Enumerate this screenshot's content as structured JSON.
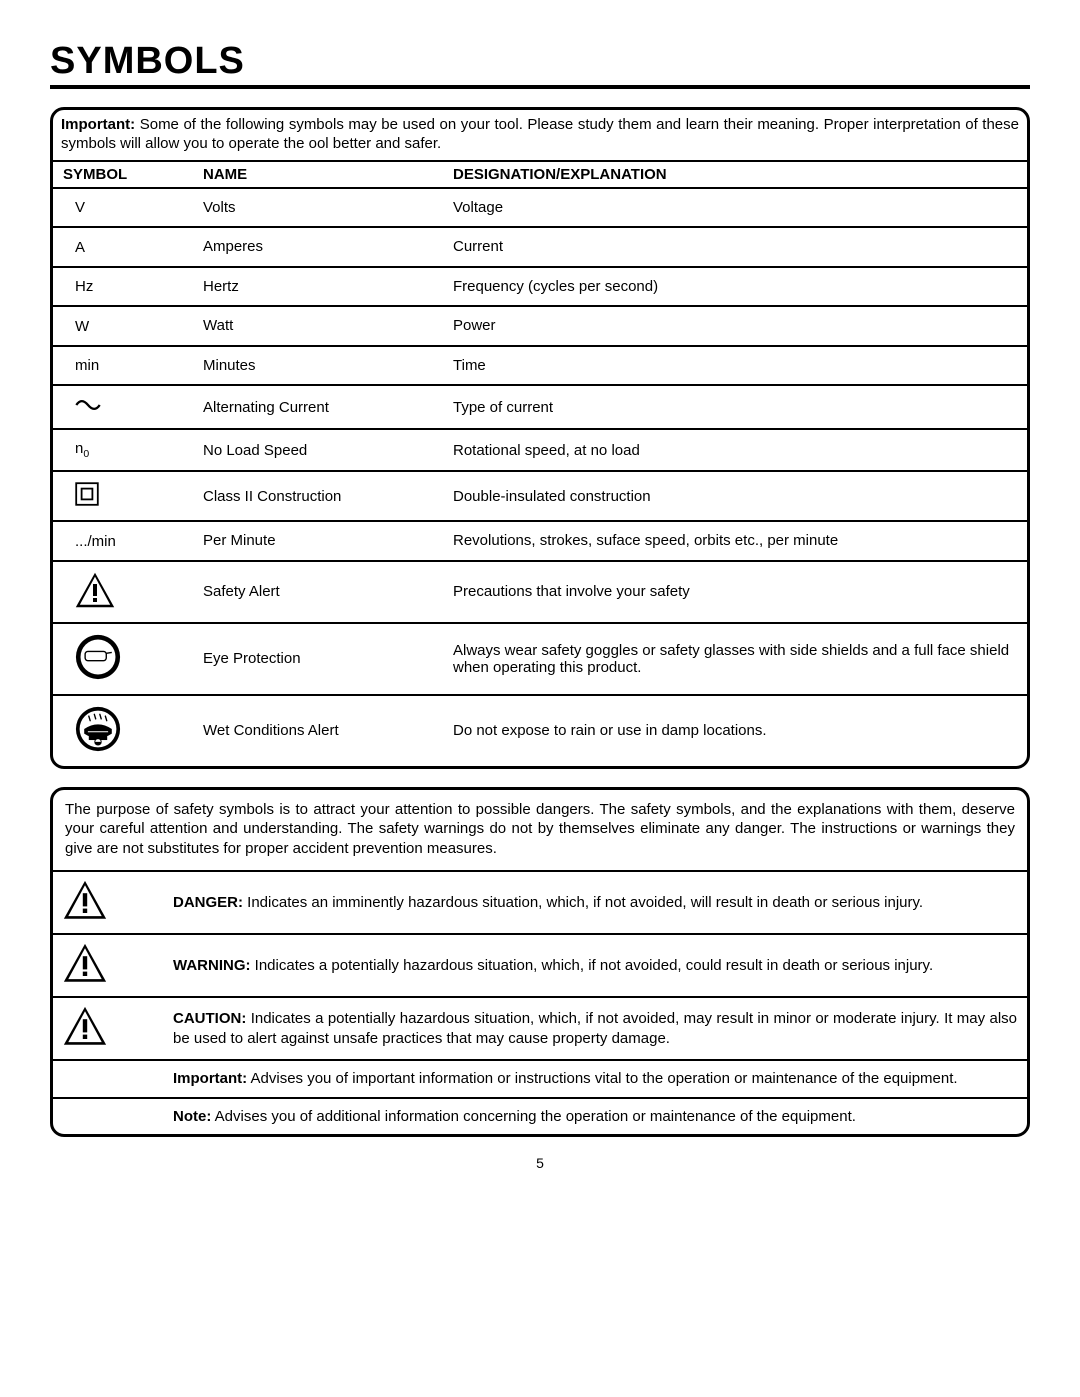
{
  "title": "SYMBOLS",
  "pageNumber": "5",
  "intro": {
    "lead": "Important:",
    "text": " Some of the following symbols may be used on your tool. Please study them and learn their meaning. Proper interpretation of these symbols will allow you to operate the ool better and safer."
  },
  "headers": {
    "symbol": "SYMBOL",
    "name": "NAME",
    "designation": "DESIGNATION/EXPLANATION"
  },
  "rows": [
    {
      "symType": "text",
      "sym": "V",
      "name": "Volts",
      "expl": "Voltage"
    },
    {
      "symType": "text",
      "sym": "A",
      "name": "Amperes",
      "expl": "Current"
    },
    {
      "symType": "text",
      "sym": "Hz",
      "name": "Hertz",
      "expl": "Frequency (cycles per second)"
    },
    {
      "symType": "text",
      "sym": "W",
      "name": "Watt",
      "expl": "Power"
    },
    {
      "symType": "text",
      "sym": "min",
      "name": "Minutes",
      "expl": "Time"
    },
    {
      "symType": "ac",
      "sym": "",
      "name": "Alternating Current",
      "expl": "Type of current"
    },
    {
      "symType": "n0",
      "sym": "",
      "name": "No Load Speed",
      "expl": "Rotational speed, at no load"
    },
    {
      "symType": "class2",
      "sym": "",
      "name": "Class II Construction",
      "expl": "Double-insulated construction"
    },
    {
      "symType": "text",
      "sym": ".../min",
      "name": "Per Minute",
      "expl": "Revolutions, strokes, suface speed, orbits etc., per minute"
    },
    {
      "symType": "alert",
      "sym": "",
      "name": "Safety Alert",
      "expl": "Precautions that involve your safety"
    },
    {
      "symType": "eye",
      "sym": "",
      "name": "Eye Protection",
      "expl": "Always wear safety goggles or safety glasses with side shields and a full face shield when operating this product."
    },
    {
      "symType": "wet",
      "sym": "",
      "name": "Wet Conditions Alert",
      "expl": "Do not expose to rain or use in damp locations."
    }
  ],
  "panel2Intro": "The purpose of safety symbols is to attract your attention to possible dangers. The safety symbols, and the explanations with them, deserve your careful attention and understanding. The safety warnings do not by themselves eliminate any danger. The instructions or warnings they give are not substitutes for proper accident prevention measures.",
  "warnings": [
    {
      "icon": true,
      "lead": "DANGER:",
      "text": " Indicates an imminently hazardous situation, which, if not avoided, will result in death or serious injury."
    },
    {
      "icon": true,
      "lead": "WARNING:",
      "text": " Indicates a potentially hazardous situation, which, if not avoided, could result in death or serious injury."
    },
    {
      "icon": true,
      "lead": "CAUTION:",
      "text": " Indicates a potentially hazardous situation, which, if not avoided, may result in minor or moderate injury. It may also be used to alert against unsafe practices that may cause property damage."
    },
    {
      "icon": false,
      "lead": "Important:",
      "text": " Advises you of important information or instructions vital to the operation or maintenance of the equipment."
    },
    {
      "icon": false,
      "lead": "Note:",
      "text": " Advises you of additional information concerning the operation or maintenance of the equipment."
    }
  ]
}
